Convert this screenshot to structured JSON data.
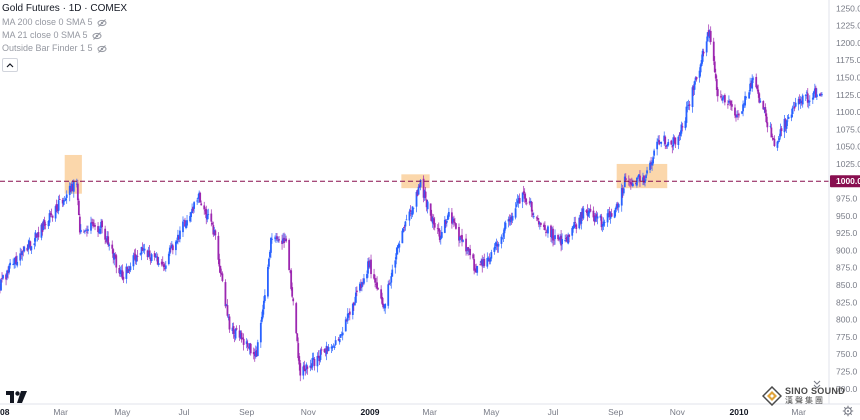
{
  "legend": {
    "title": "Gold Futures · 1D · COMEX",
    "indicators": [
      {
        "label": "MA 200 close 0 SMA 5"
      },
      {
        "label": "MA 21 close 0 SMA 5"
      },
      {
        "label": "Outside Bar Finder 1 5"
      }
    ]
  },
  "watermark": {
    "en": "SINO SOUND",
    "cn": "漢聲集團"
  },
  "colors": {
    "up": "#2962ff",
    "down": "#9c27b0",
    "level_line": "#880e4f",
    "level_label_bg": "#880e4f",
    "highlight": "#f9c98f",
    "axis_text": "#787b86"
  },
  "chart_data": {
    "type": "candlestick",
    "y_axis": {
      "range": [
        678,
        1262
      ],
      "ticks": [
        "700.0",
        "725.0",
        "750.0",
        "775.0",
        "800.0",
        "825.0",
        "850.0",
        "875.0",
        "900.0",
        "925.0",
        "950.0",
        "975.0",
        "1000.0",
        "1025.0",
        "1050.0",
        "1075.0",
        "1100.0",
        "1125.0",
        "1150.0",
        "1175.0",
        "1200.0",
        "1225.0",
        "1250.0"
      ]
    },
    "x_axis": {
      "range": [
        "2008-01-01",
        "2010-03-31"
      ],
      "labels": [
        {
          "date": "2008-01-01",
          "text": "08"
        },
        {
          "date": "2008-03-01",
          "text": "Mar"
        },
        {
          "date": "2008-05-01",
          "text": "May"
        },
        {
          "date": "2008-07-01",
          "text": "Jul"
        },
        {
          "date": "2008-09-01",
          "text": "Sep"
        },
        {
          "date": "2008-11-01",
          "text": "Nov"
        },
        {
          "date": "2009-01-01",
          "text": "2009"
        },
        {
          "date": "2009-03-01",
          "text": "Mar"
        },
        {
          "date": "2009-05-01",
          "text": "May"
        },
        {
          "date": "2009-07-01",
          "text": "Jul"
        },
        {
          "date": "2009-09-01",
          "text": "Sep"
        },
        {
          "date": "2009-11-01",
          "text": "Nov"
        },
        {
          "date": "2010-01-01",
          "text": "2010"
        },
        {
          "date": "2010-03-01",
          "text": "Mar"
        }
      ]
    },
    "price_path": [
      {
        "date": "2008-01-01",
        "close": 850
      },
      {
        "date": "2008-01-15",
        "close": 885
      },
      {
        "date": "2008-02-01",
        "close": 910
      },
      {
        "date": "2008-02-20",
        "close": 950
      },
      {
        "date": "2008-03-17",
        "close": 1000
      },
      {
        "date": "2008-03-20",
        "close": 930
      },
      {
        "date": "2008-04-10",
        "close": 935
      },
      {
        "date": "2008-05-01",
        "close": 860
      },
      {
        "date": "2008-05-20",
        "close": 905
      },
      {
        "date": "2008-06-10",
        "close": 875
      },
      {
        "date": "2008-07-15",
        "close": 980
      },
      {
        "date": "2008-08-01",
        "close": 920
      },
      {
        "date": "2008-08-15",
        "close": 790
      },
      {
        "date": "2008-09-11",
        "close": 750
      },
      {
        "date": "2008-09-25",
        "close": 910
      },
      {
        "date": "2008-10-10",
        "close": 920
      },
      {
        "date": "2008-10-24",
        "close": 720
      },
      {
        "date": "2008-11-10",
        "close": 745
      },
      {
        "date": "2008-12-01",
        "close": 770
      },
      {
        "date": "2008-12-31",
        "close": 880
      },
      {
        "date": "2009-01-15",
        "close": 820
      },
      {
        "date": "2009-02-01",
        "close": 920
      },
      {
        "date": "2009-02-20",
        "close": 995
      },
      {
        "date": "2009-03-10",
        "close": 920
      },
      {
        "date": "2009-03-20",
        "close": 950
      },
      {
        "date": "2009-04-15",
        "close": 875
      },
      {
        "date": "2009-05-01",
        "close": 890
      },
      {
        "date": "2009-06-01",
        "close": 985
      },
      {
        "date": "2009-06-20",
        "close": 935
      },
      {
        "date": "2009-07-10",
        "close": 910
      },
      {
        "date": "2009-08-01",
        "close": 955
      },
      {
        "date": "2009-08-20",
        "close": 940
      },
      {
        "date": "2009-09-02",
        "close": 960
      },
      {
        "date": "2009-09-10",
        "close": 1000
      },
      {
        "date": "2009-10-01",
        "close": 1005
      },
      {
        "date": "2009-10-14",
        "close": 1060
      },
      {
        "date": "2009-11-01",
        "close": 1055
      },
      {
        "date": "2009-11-20",
        "close": 1150
      },
      {
        "date": "2009-12-03",
        "close": 1220
      },
      {
        "date": "2009-12-10",
        "close": 1130
      },
      {
        "date": "2009-12-31",
        "close": 1095
      },
      {
        "date": "2010-01-15",
        "close": 1145
      },
      {
        "date": "2010-02-05",
        "close": 1055
      },
      {
        "date": "2010-02-25",
        "close": 1110
      },
      {
        "date": "2010-03-20",
        "close": 1130
      }
    ],
    "levels": [
      {
        "value": 1000.0,
        "label": "1000.0",
        "style": "dashed"
      }
    ],
    "highlight_zones": [
      {
        "x_start": "2008-03-05",
        "x_end": "2008-03-22",
        "y_low": 982,
        "y_high": 1038
      },
      {
        "x_start": "2009-02-01",
        "x_end": "2009-03-01",
        "y_low": 990,
        "y_high": 1010
      },
      {
        "x_start": "2009-09-02",
        "x_end": "2009-10-22",
        "y_low": 990,
        "y_high": 1025
      }
    ]
  }
}
